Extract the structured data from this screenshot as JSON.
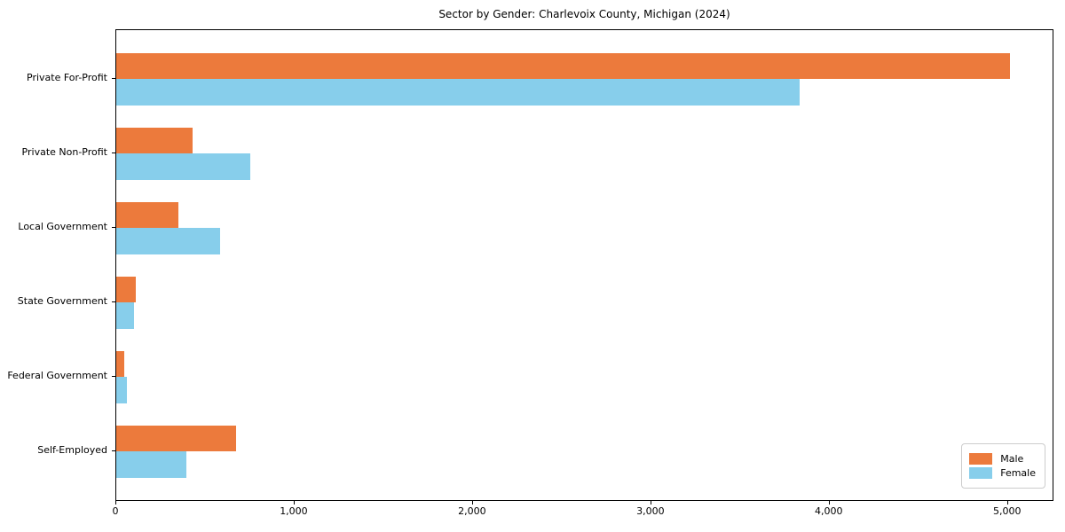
{
  "figure": {
    "background": "#ffffff"
  },
  "chart_data": {
    "type": "bar",
    "orientation": "horizontal",
    "title": "Sector by Gender: Charlevoix County, Michigan (2024)",
    "categories": [
      "Private For-Profit",
      "Private Non-Profit",
      "Local Government",
      "State Government",
      "Federal Government",
      "Self-Employed"
    ],
    "series": [
      {
        "name": "Male",
        "color": "#EC7A3C",
        "values": [
          5010,
          430,
          350,
          110,
          45,
          670
        ]
      },
      {
        "name": "Female",
        "color": "#87CEEB",
        "values": [
          3830,
          750,
          580,
          100,
          60,
          395
        ]
      }
    ],
    "xlabel": "",
    "ylabel": "",
    "xlim": [
      0,
      5260
    ],
    "xticks": {
      "values": [
        0,
        1000,
        2000,
        3000,
        4000,
        5000
      ],
      "labels": [
        "0",
        "1,000",
        "2,000",
        "3,000",
        "4,000",
        "5,000"
      ]
    },
    "grid": false,
    "legend": {
      "position": "lower right"
    },
    "axis_color": "#000000"
  }
}
